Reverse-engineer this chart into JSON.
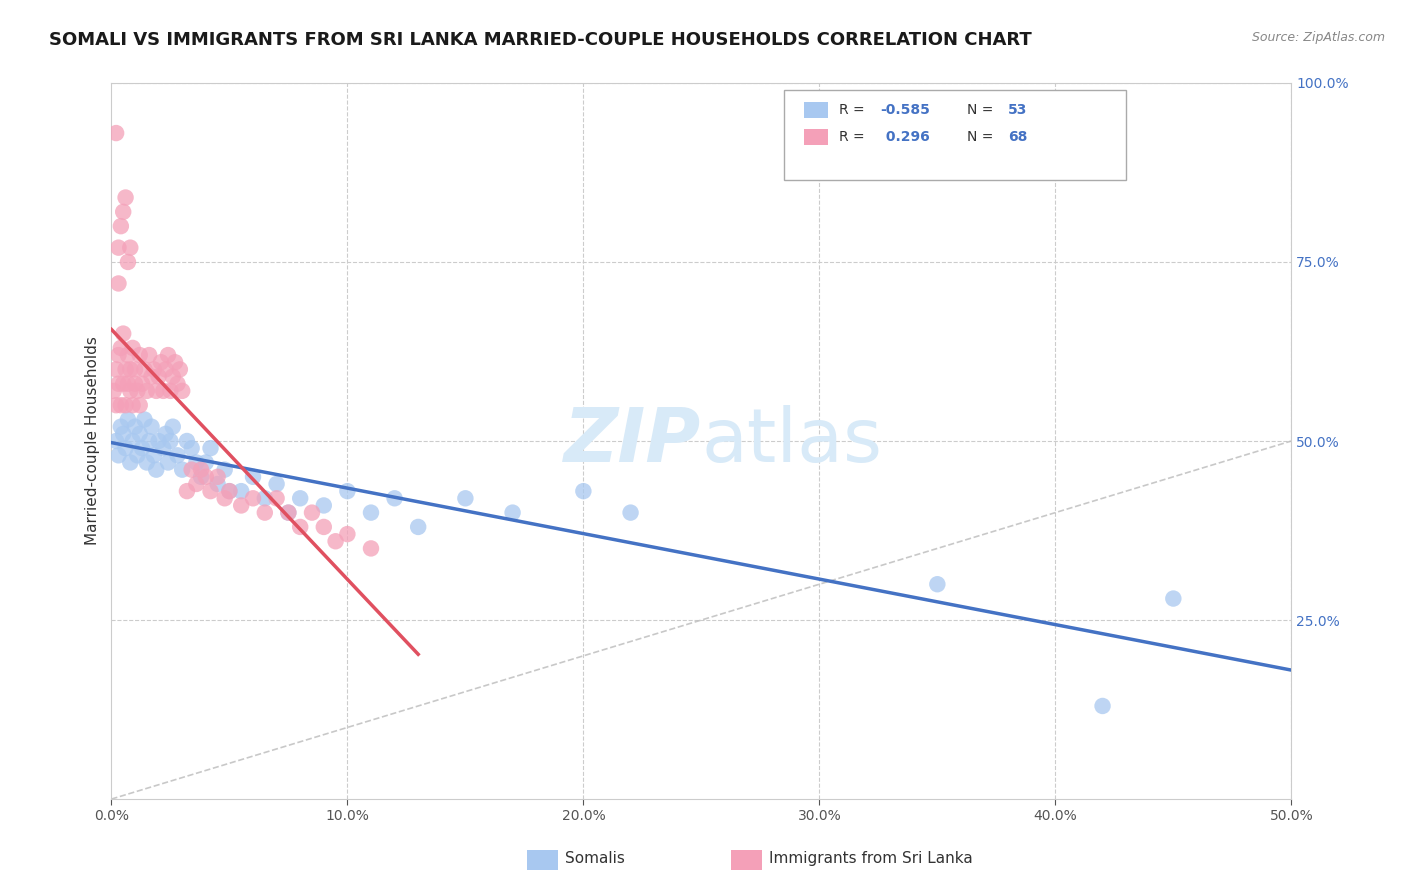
{
  "title": "SOMALI VS IMMIGRANTS FROM SRI LANKA MARRIED-COUPLE HOUSEHOLDS CORRELATION CHART",
  "source": "Source: ZipAtlas.com",
  "ylabel": "Married-couple Households",
  "xlim": [
    0.0,
    0.5
  ],
  "ylim": [
    0.0,
    1.0
  ],
  "xticks": [
    0.0,
    0.1,
    0.2,
    0.3,
    0.4,
    0.5
  ],
  "xtick_labels": [
    "0.0%",
    "10.0%",
    "20.0%",
    "30.0%",
    "40.0%",
    "50.0%"
  ],
  "yticks_right": [
    0.25,
    0.5,
    0.75,
    1.0
  ],
  "ytick_labels_right": [
    "25.0%",
    "50.0%",
    "75.0%",
    "100.0%"
  ],
  "blue_color": "#A8C8F0",
  "pink_color": "#F4A0B8",
  "trendline_blue_color": "#4472C4",
  "trendline_pink_color": "#E05060",
  "background_color": "#FFFFFF",
  "grid_color": "#CCCCCC",
  "title_fontsize": 13,
  "axis_label_fontsize": 11,
  "tick_fontsize": 10,
  "right_tick_color": "#4472C4",
  "watermark_color": "#D8EAF8",
  "somali_x": [
    0.002,
    0.003,
    0.004,
    0.005,
    0.006,
    0.007,
    0.008,
    0.009,
    0.01,
    0.011,
    0.012,
    0.013,
    0.014,
    0.015,
    0.016,
    0.017,
    0.018,
    0.019,
    0.02,
    0.022,
    0.023,
    0.024,
    0.025,
    0.026,
    0.028,
    0.03,
    0.032,
    0.034,
    0.036,
    0.038,
    0.04,
    0.042,
    0.045,
    0.048,
    0.05,
    0.055,
    0.06,
    0.065,
    0.07,
    0.075,
    0.08,
    0.09,
    0.1,
    0.11,
    0.12,
    0.13,
    0.15,
    0.17,
    0.2,
    0.22,
    0.35,
    0.42,
    0.45
  ],
  "somali_y": [
    0.5,
    0.48,
    0.52,
    0.51,
    0.49,
    0.53,
    0.47,
    0.5,
    0.52,
    0.48,
    0.51,
    0.49,
    0.53,
    0.47,
    0.5,
    0.52,
    0.48,
    0.46,
    0.5,
    0.49,
    0.51,
    0.47,
    0.5,
    0.52,
    0.48,
    0.46,
    0.5,
    0.49,
    0.47,
    0.45,
    0.47,
    0.49,
    0.44,
    0.46,
    0.43,
    0.43,
    0.45,
    0.42,
    0.44,
    0.4,
    0.42,
    0.41,
    0.43,
    0.4,
    0.42,
    0.38,
    0.42,
    0.4,
    0.43,
    0.4,
    0.3,
    0.13,
    0.28
  ],
  "srilanka_x": [
    0.001,
    0.002,
    0.002,
    0.003,
    0.003,
    0.004,
    0.004,
    0.005,
    0.005,
    0.006,
    0.006,
    0.007,
    0.007,
    0.008,
    0.008,
    0.009,
    0.009,
    0.01,
    0.01,
    0.011,
    0.012,
    0.012,
    0.013,
    0.014,
    0.015,
    0.016,
    0.017,
    0.018,
    0.019,
    0.02,
    0.021,
    0.022,
    0.023,
    0.024,
    0.025,
    0.026,
    0.027,
    0.028,
    0.029,
    0.03,
    0.032,
    0.034,
    0.036,
    0.038,
    0.04,
    0.042,
    0.045,
    0.048,
    0.05,
    0.055,
    0.06,
    0.065,
    0.07,
    0.075,
    0.08,
    0.085,
    0.09,
    0.095,
    0.1,
    0.11,
    0.003,
    0.004,
    0.005,
    0.006,
    0.007,
    0.008,
    0.002,
    0.003
  ],
  "srilanka_y": [
    0.57,
    0.6,
    0.55,
    0.62,
    0.58,
    0.63,
    0.55,
    0.65,
    0.58,
    0.6,
    0.55,
    0.58,
    0.62,
    0.57,
    0.6,
    0.55,
    0.63,
    0.58,
    0.6,
    0.57,
    0.62,
    0.55,
    0.58,
    0.6,
    0.57,
    0.62,
    0.59,
    0.6,
    0.57,
    0.59,
    0.61,
    0.57,
    0.6,
    0.62,
    0.57,
    0.59,
    0.61,
    0.58,
    0.6,
    0.57,
    0.43,
    0.46,
    0.44,
    0.46,
    0.45,
    0.43,
    0.45,
    0.42,
    0.43,
    0.41,
    0.42,
    0.4,
    0.42,
    0.4,
    0.38,
    0.4,
    0.38,
    0.36,
    0.37,
    0.35,
    0.77,
    0.8,
    0.82,
    0.84,
    0.75,
    0.77,
    0.93,
    0.72
  ]
}
